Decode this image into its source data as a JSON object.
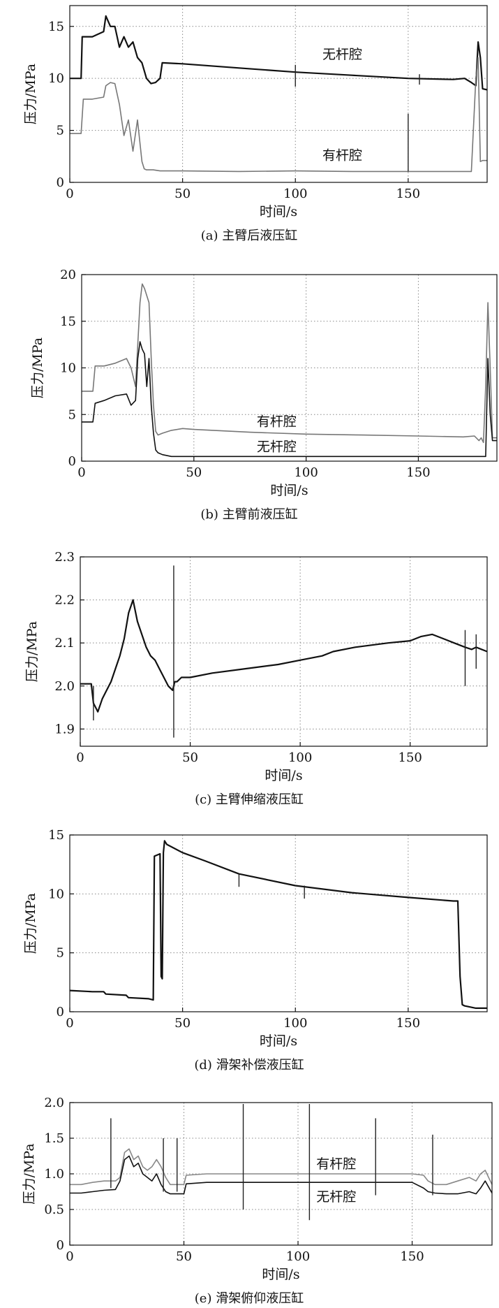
{
  "chart_data": [
    {
      "id": "a",
      "type": "line",
      "caption": "(a) 主臂后液压缸",
      "xlabel": "时间/s",
      "ylabel": "压力/MPa",
      "xlim": [
        0,
        185
      ],
      "ylim": [
        0,
        17
      ],
      "xticks": [
        0,
        50,
        100,
        150
      ],
      "yticks": [
        0,
        5,
        10,
        15
      ],
      "series": [
        {
          "name": "无杆腔",
          "color": "#111111",
          "x": [
            0,
            5,
            5.5,
            10,
            15,
            16,
            18,
            20,
            22,
            24,
            26,
            28,
            30,
            32,
            34,
            36,
            38,
            40,
            41,
            50,
            75,
            100,
            125,
            150,
            170,
            175,
            178,
            180,
            181,
            182,
            183,
            185
          ],
          "y": [
            10,
            10,
            14,
            14,
            14.5,
            16,
            15,
            15,
            13,
            14,
            13,
            13.5,
            12,
            11.5,
            10,
            9.5,
            9.6,
            10,
            11.5,
            11.4,
            11,
            10.6,
            10.3,
            10,
            9.9,
            10,
            9.6,
            9.3,
            13.5,
            12,
            9,
            8.9
          ]
        },
        {
          "name": "有杆腔",
          "color": "#777777",
          "x": [
            0,
            5,
            6,
            10,
            15,
            16,
            18,
            20,
            22,
            24,
            26,
            28,
            30,
            32,
            33,
            34,
            35,
            36,
            37,
            40,
            50,
            75,
            100,
            125,
            150,
            178,
            180,
            181,
            182,
            183,
            185
          ],
          "y": [
            4.7,
            4.7,
            8,
            8,
            8.2,
            9.3,
            9.6,
            9.5,
            7.5,
            4.5,
            6,
            3,
            6,
            2,
            1.3,
            1.2,
            1.2,
            1.2,
            1.2,
            1.1,
            1.1,
            1.05,
            1.1,
            1.05,
            1.05,
            1.05,
            10,
            12,
            2,
            2.1,
            2.1
          ]
        }
      ],
      "spikes": [
        {
          "x": 50,
          "y1": 11.5,
          "y2": 11.5
        },
        {
          "x": 100,
          "y1": 9.2,
          "y2": 11.3
        },
        {
          "x": 155,
          "y1": 9.4,
          "y2": 10.4
        },
        {
          "x": 150,
          "y1": 1.05,
          "y2": 6.6
        }
      ],
      "annotations": [
        {
          "text": "无杆腔",
          "x": 112,
          "y": 11.9
        },
        {
          "text": "有杆腔",
          "x": 112,
          "y": 2.2
        }
      ]
    },
    {
      "id": "b",
      "type": "line",
      "caption": "(b) 主臂前液压缸",
      "xlabel": "时间/s",
      "ylabel": "压力/MPa",
      "xlim": [
        0,
        185
      ],
      "ylim": [
        0,
        20
      ],
      "xticks": [
        0,
        50,
        100,
        150
      ],
      "yticks": [
        0,
        5,
        10,
        15,
        20
      ],
      "series": [
        {
          "name": "有杆腔",
          "color": "#777777",
          "x": [
            0,
            5,
            6,
            10,
            15,
            20,
            22,
            24,
            26,
            27,
            28,
            30,
            31,
            32,
            33,
            34,
            36,
            40,
            45,
            50,
            75,
            100,
            125,
            150,
            170,
            175,
            177,
            178,
            179,
            180,
            181,
            182,
            183,
            185
          ],
          "y": [
            7.5,
            7.5,
            10.2,
            10.2,
            10.5,
            11,
            10,
            8,
            17,
            19,
            18.5,
            17,
            11,
            6,
            3.2,
            2.8,
            3,
            3.3,
            3.5,
            3.4,
            3.1,
            2.9,
            2.8,
            2.7,
            2.6,
            2.7,
            2.2,
            2.5,
            2,
            8,
            17,
            10,
            2.5,
            2.5
          ]
        },
        {
          "name": "无杆腔",
          "color": "#111111",
          "x": [
            0,
            5,
            6,
            10,
            15,
            20,
            22,
            24,
            25,
            26,
            27,
            28,
            29,
            30,
            31,
            32,
            33,
            34,
            36,
            40,
            45,
            50,
            75,
            100,
            125,
            150,
            175,
            179,
            180,
            181,
            182,
            183,
            185
          ],
          "y": [
            4.2,
            4.2,
            6.2,
            6.5,
            7,
            7.2,
            6,
            6.5,
            11,
            12.8,
            12,
            11.5,
            8,
            11,
            6,
            3,
            1.2,
            0.9,
            0.7,
            0.5,
            0.5,
            0.5,
            0.5,
            0.5,
            0.5,
            0.5,
            0.5,
            0.5,
            0.5,
            11,
            5,
            2.2,
            2.2
          ]
        }
      ],
      "spikes": [],
      "annotations": [
        {
          "text": "有杆腔",
          "x": 78,
          "y": 3.8
        },
        {
          "text": "无杆腔",
          "x": 78,
          "y": 1.1
        }
      ]
    },
    {
      "id": "c",
      "type": "line",
      "caption": "(c) 主臂伸缩液压缸",
      "xlabel": "时间/s",
      "ylabel": "压力/MPa",
      "xlim": [
        0,
        185
      ],
      "ylim": [
        1.86,
        2.3
      ],
      "xticks": [
        0,
        50,
        100,
        150
      ],
      "yticks": [
        1.9,
        2.0,
        2.1,
        2.2,
        2.3
      ],
      "ytick_labels": [
        "1.9",
        "2.0",
        "2.1",
        "2.2",
        "2.3"
      ],
      "series": [
        {
          "name": "伸缩液压缸",
          "color": "#111111",
          "x": [
            0,
            5,
            6,
            8,
            10,
            12,
            14,
            16,
            18,
            20,
            22,
            24,
            26,
            28,
            30,
            32,
            34,
            36,
            38,
            40,
            42,
            43,
            44,
            46,
            50,
            60,
            75,
            90,
            100,
            110,
            115,
            125,
            140,
            150,
            155,
            160,
            165,
            170,
            175,
            178,
            180,
            185
          ],
          "y": [
            2.005,
            2.005,
            1.96,
            1.94,
            1.97,
            1.99,
            2.01,
            2.04,
            2.07,
            2.11,
            2.17,
            2.2,
            2.15,
            2.12,
            2.09,
            2.07,
            2.06,
            2.04,
            2.02,
            2.0,
            1.99,
            2.01,
            2.01,
            2.02,
            2.02,
            2.03,
            2.04,
            2.05,
            2.06,
            2.07,
            2.08,
            2.09,
            2.1,
            2.105,
            2.115,
            2.12,
            2.11,
            2.1,
            2.09,
            2.085,
            2.09,
            2.08
          ]
        }
      ],
      "spikes": [
        {
          "x": 42.5,
          "y1": 1.88,
          "y2": 2.28
        },
        {
          "x": 6,
          "y1": 1.92,
          "y2": 2.0
        },
        {
          "x": 175,
          "y1": 2.0,
          "y2": 2.13
        },
        {
          "x": 180,
          "y1": 2.04,
          "y2": 2.12
        }
      ],
      "annotations": []
    },
    {
      "id": "d",
      "type": "line",
      "caption": "(d) 滑架补偿液压缸",
      "xlabel": "时间/s",
      "ylabel": "压力/MPa",
      "xlim": [
        0,
        185
      ],
      "ylim": [
        0,
        15
      ],
      "xticks": [
        0,
        50,
        100,
        150
      ],
      "yticks": [
        0,
        5,
        10,
        15
      ],
      "series": [
        {
          "name": "补偿液压缸",
          "color": "#111111",
          "x": [
            0,
            10,
            15,
            16,
            25,
            26,
            35,
            37,
            37.5,
            40,
            40.5,
            41,
            41.5,
            42,
            43,
            50,
            60,
            75,
            100,
            125,
            150,
            170,
            172,
            173,
            174,
            175,
            180,
            185
          ],
          "y": [
            1.8,
            1.7,
            1.7,
            1.5,
            1.4,
            1.2,
            1.1,
            1.0,
            13.2,
            13.4,
            3.0,
            2.8,
            13.5,
            14.5,
            14.2,
            13.5,
            12.8,
            11.7,
            10.7,
            10.1,
            9.7,
            9.4,
            9.4,
            3,
            0.6,
            0.5,
            0.3,
            0.3
          ]
        }
      ],
      "spikes": [
        {
          "x": 75,
          "y1": 10.6,
          "y2": 11.7
        },
        {
          "x": 104,
          "y1": 9.6,
          "y2": 10.7
        }
      ],
      "annotations": []
    },
    {
      "id": "e",
      "type": "line",
      "caption": "(e) 滑架俯仰液压缸",
      "xlabel": "时间/s",
      "ylabel": "压力/MPa",
      "xlim": [
        0,
        185
      ],
      "ylim": [
        0,
        2.0
      ],
      "xticks": [
        0,
        50,
        100,
        150
      ],
      "yticks": [
        0,
        0.5,
        1.0,
        1.5,
        2.0
      ],
      "ytick_labels": [
        "0",
        "0.5",
        "1.0",
        "1.5",
        "2.0"
      ],
      "series": [
        {
          "name": "有杆腔",
          "color": "#888888",
          "x": [
            0,
            5,
            10,
            15,
            20,
            22,
            24,
            26,
            28,
            30,
            32,
            34,
            36,
            38,
            40,
            42,
            44,
            46,
            48,
            49,
            50,
            51,
            60,
            75,
            100,
            125,
            150,
            155,
            157,
            160,
            165,
            170,
            175,
            178,
            180,
            182,
            185
          ],
          "y": [
            0.85,
            0.85,
            0.88,
            0.9,
            0.9,
            0.95,
            1.3,
            1.35,
            1.2,
            1.25,
            1.1,
            1.05,
            1.1,
            1.2,
            1.1,
            0.95,
            0.85,
            0.85,
            0.85,
            0.85,
            0.85,
            0.98,
            1.0,
            1.0,
            1.0,
            1.0,
            1.0,
            0.98,
            0.9,
            0.85,
            0.85,
            0.9,
            0.95,
            0.9,
            1.0,
            1.05,
            0.85
          ]
        },
        {
          "name": "无杆腔",
          "color": "#111111",
          "x": [
            0,
            5,
            10,
            15,
            20,
            22,
            24,
            26,
            28,
            30,
            32,
            34,
            36,
            38,
            40,
            42,
            44,
            46,
            48,
            49,
            50,
            51,
            60,
            75,
            100,
            125,
            150,
            155,
            157,
            160,
            165,
            170,
            175,
            178,
            180,
            182,
            185
          ],
          "y": [
            0.73,
            0.73,
            0.75,
            0.77,
            0.78,
            0.9,
            1.2,
            1.25,
            1.1,
            1.15,
            1.0,
            0.95,
            0.9,
            1.0,
            0.85,
            0.75,
            0.72,
            0.72,
            0.72,
            0.72,
            0.72,
            0.86,
            0.88,
            0.88,
            0.88,
            0.88,
            0.88,
            0.8,
            0.75,
            0.73,
            0.72,
            0.72,
            0.75,
            0.72,
            0.8,
            0.9,
            0.73
          ]
        }
      ],
      "spikes": [
        {
          "x": 18,
          "y1": 0.8,
          "y2": 1.78
        },
        {
          "x": 41,
          "y1": 0.75,
          "y2": 1.5
        },
        {
          "x": 47,
          "y1": 0.75,
          "y2": 1.5
        },
        {
          "x": 76,
          "y1": 0.5,
          "y2": 1.98
        },
        {
          "x": 105,
          "y1": 0.35,
          "y2": 1.98
        },
        {
          "x": 134,
          "y1": 0.7,
          "y2": 1.78
        },
        {
          "x": 159,
          "y1": 0.7,
          "y2": 1.55
        }
      ],
      "annotations": [
        {
          "text": "有杆腔",
          "x": 108,
          "y": 1.08
        },
        {
          "text": "无杆腔",
          "x": 108,
          "y": 0.62
        }
      ]
    }
  ]
}
